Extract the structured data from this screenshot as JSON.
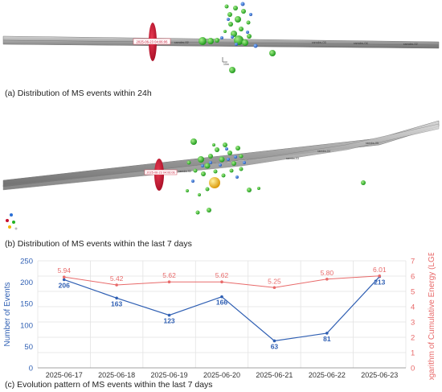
{
  "captions": {
    "a": "(a) Distribution of MS events within 24h",
    "b": "(b) Distribution of MS events within the last 7 days",
    "c": "(c) Evolution pattern of MS events within the last 7 days"
  },
  "scene_a": {
    "timestamp_label": "2025-06-23 04:06:06",
    "scale_label": "10m",
    "tunnel_labels": [
      "ramdw-02",
      "ramdw-03",
      "ramdw-04",
      "ramdw-02"
    ],
    "colors": {
      "tunnel": "#a8a8a8",
      "marker": "#c8102e",
      "event_green": "#22b322",
      "event_blue": "#2b6fd6"
    }
  },
  "scene_b": {
    "timestamp_label": "2025-06-23 04:06:06",
    "tunnel_labels": [
      "ramdw-02",
      "ramdw-03",
      "ramdw-04",
      "ramdw-05"
    ],
    "colors": {
      "tunnel": "#a8a8a8",
      "marker": "#c8102e",
      "event_green": "#22b322",
      "event_blue": "#2b6fd6",
      "event_large": "#f2b705"
    }
  },
  "chart_data": {
    "type": "line",
    "x": [
      "2025-06-17",
      "2025-06-18",
      "2025-06-19",
      "2025-06-20",
      "2025-06-21",
      "2025-06-22",
      "2025-06-23"
    ],
    "series": [
      {
        "axis": "left",
        "color": "#2f5fb3",
        "values": [
          206,
          163,
          123,
          166,
          63,
          81,
          213
        ]
      },
      {
        "axis": "right",
        "color": "#e86a6a",
        "values": [
          5.94,
          5.42,
          5.62,
          5.62,
          5.25,
          5.8,
          6.01
        ]
      }
    ],
    "ylabel": "Number of Events",
    "y2label": "Logarithm of Cumulative Energy (LGE/J)",
    "ylim": [
      0,
      250
    ],
    "y_ticks": [
      0,
      50,
      100,
      150,
      200,
      250
    ],
    "y2lim": [
      0,
      7
    ],
    "y2_ticks": [
      0,
      1,
      2,
      3,
      4,
      5,
      6,
      7
    ],
    "grid": true
  }
}
